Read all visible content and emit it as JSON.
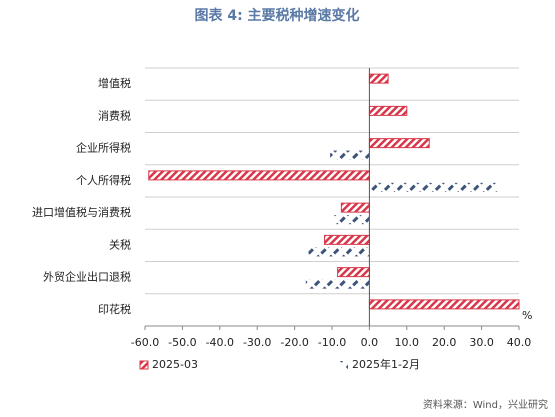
{
  "chart_data": {
    "type": "hbar",
    "title": "图表 4:  主要税种增速变化",
    "categories": [
      "增值税",
      "消费税",
      "企业所得税",
      "个人所得税",
      "进口增值税与消费税",
      "关税",
      "外贸企业出口退税",
      "印花税"
    ],
    "series": [
      {
        "name": "2025-03",
        "color": "#d9364a",
        "values": [
          5,
          10,
          16,
          -59,
          -7.5,
          -12,
          -8.5,
          40
        ]
      },
      {
        "name": "2025年1-2月",
        "color": "#3d5478",
        "values": [
          0,
          0,
          -10.5,
          34.5,
          -9.6,
          -16.3,
          -17,
          0
        ]
      }
    ],
    "xlim": [
      -60,
      40
    ],
    "xticks": [
      {
        "value": -60,
        "label": "-60.0"
      },
      {
        "value": -50,
        "label": "-50.0"
      },
      {
        "value": -40,
        "label": "-40.0"
      },
      {
        "value": -30,
        "label": "-30.0"
      },
      {
        "value": -20,
        "label": "-20.0"
      },
      {
        "value": -10,
        "label": "-10.0"
      },
      {
        "value": 0,
        "label": "0.0"
      },
      {
        "value": 10,
        "label": "10.0"
      },
      {
        "value": 20,
        "label": "20.0"
      },
      {
        "value": 30,
        "label": "30.0"
      },
      {
        "value": 40,
        "label": "40.0"
      }
    ],
    "x_unit": "%",
    "grid": true,
    "source": "资料来源：Wind，兴业研究"
  }
}
